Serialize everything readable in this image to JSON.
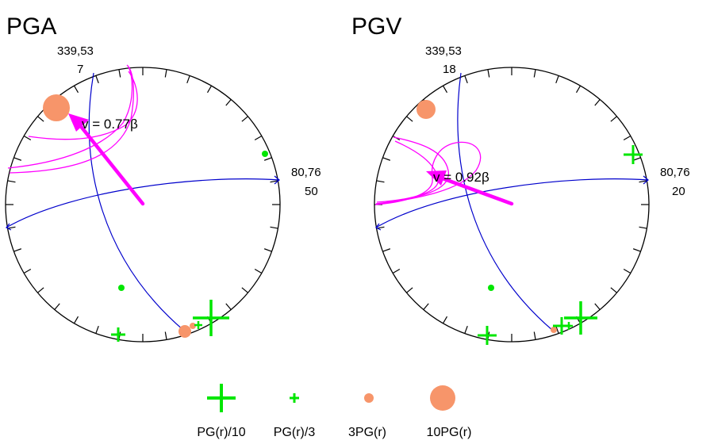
{
  "panels": [
    {
      "title": "PGA",
      "top_label_1": "339,53",
      "top_label_2": "7",
      "right_label_1": "80,76",
      "right_label_2": "50",
      "velocity_label": "v = 0.77β"
    },
    {
      "title": "PGV",
      "top_label_1": "339,53",
      "top_label_2": "18",
      "right_label_1": "80,76",
      "right_label_2": "20",
      "velocity_label": "v = 0.92β"
    }
  ],
  "legend": {
    "items": [
      {
        "label": "PG(r)/10",
        "symbol": "plus-large"
      },
      {
        "label": "PG(r)/3",
        "symbol": "plus-small"
      },
      {
        "label": "3PG(r)",
        "symbol": "circle-small"
      },
      {
        "label": "10PG(r)",
        "symbol": "circle-large"
      }
    ]
  },
  "colors": {
    "frame": "#000000",
    "nodal_planes": "#0000cc",
    "contours": "#ff00ff",
    "rupture_arrow": "#ff00ff",
    "positive_residual": "#00e600",
    "negative_residual": "#f7956a"
  }
}
